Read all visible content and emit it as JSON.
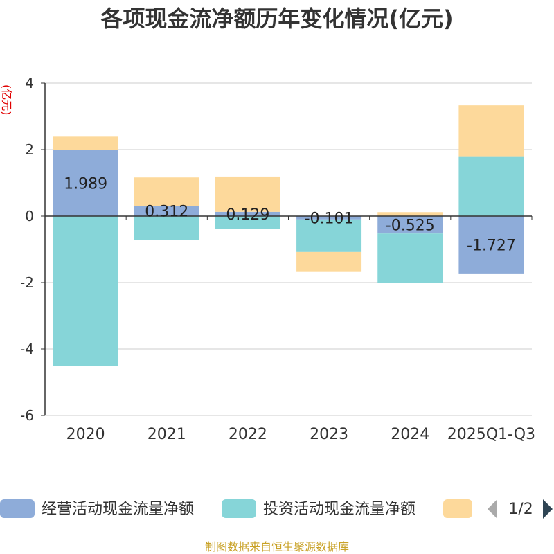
{
  "chart_data": {
    "type": "bar",
    "stacked": true,
    "title": "各项现金流净额历年变化情况(亿元)",
    "ylabel": "(亿元)",
    "xlabel": "",
    "ylim": [
      -6,
      4
    ],
    "yticks": [
      4,
      2,
      0,
      -2,
      -4,
      -6
    ],
    "categories": [
      "2020",
      "2021",
      "2022",
      "2023",
      "2024",
      "2025Q1-Q3"
    ],
    "series": [
      {
        "name": "经营活动现金流量净额",
        "color": "#8eacd9",
        "values": [
          1.989,
          0.312,
          0.129,
          -0.101,
          -0.525,
          -1.727
        ],
        "labels": [
          "1.989",
          "0.312",
          "0.129",
          "-0.101",
          "-0.525",
          "-1.727"
        ]
      },
      {
        "name": "投资活动现金流量净额",
        "color": "#86d5d8",
        "values": [
          -4.5,
          -0.72,
          -0.38,
          -0.98,
          -1.48,
          1.8
        ]
      },
      {
        "name": "",
        "color": "#fdd99b",
        "values": [
          0.4,
          0.85,
          1.06,
          -0.6,
          0.12,
          1.53
        ]
      }
    ],
    "legend": {
      "position": "bottom",
      "page": "1/2"
    }
  },
  "source": "制图数据来自恒生聚源数据库"
}
